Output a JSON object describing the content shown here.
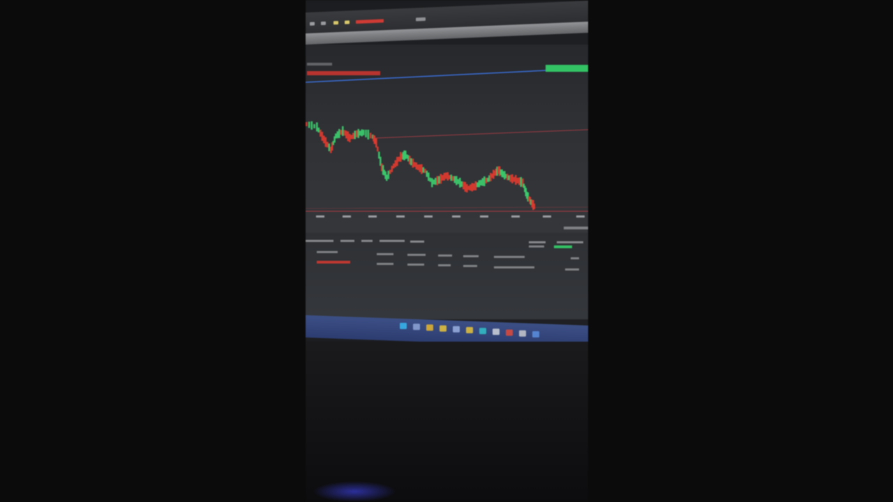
{
  "photo": {
    "description_free": true,
    "colors": {
      "background": "#0b0b0b",
      "bull_candle": "#3ccf6e",
      "bear_candle": "#e23a2f",
      "price_line": "#3b6fd8",
      "level_line": "#d0404a",
      "taskbar": "#34488a",
      "highlight_badge": "#34d36a"
    },
    "icons": [
      "windows-start-icon",
      "search-icon",
      "folder-icon",
      "browser-icon",
      "app-icon",
      "app-icon",
      "chrome-icon",
      "system-tray-icon"
    ]
  }
}
